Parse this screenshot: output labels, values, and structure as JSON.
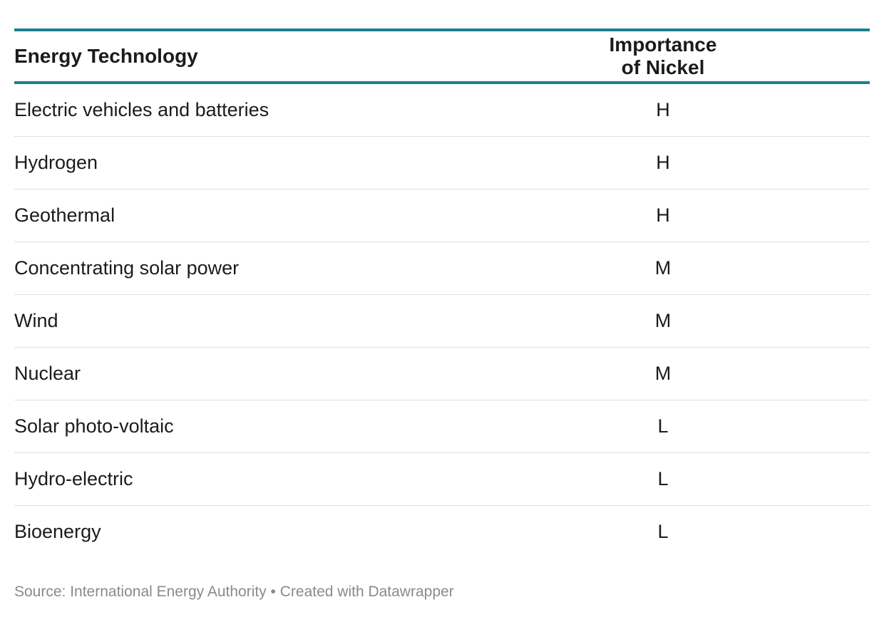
{
  "table": {
    "headers": [
      "Energy Technology",
      "Importance of Nickel"
    ],
    "rows": [
      [
        "Electric vehicles and batteries",
        "H"
      ],
      [
        "Hydrogen",
        "H"
      ],
      [
        "Geothermal",
        "H"
      ],
      [
        "Concentrating solar power",
        "M"
      ],
      [
        "Wind",
        "M"
      ],
      [
        "Nuclear",
        "M"
      ],
      [
        "Solar photo-voltaic",
        "L"
      ],
      [
        "Hydro-electric",
        "L"
      ],
      [
        "Bioenergy",
        "L"
      ]
    ]
  },
  "footer": {
    "text": "Source: International Energy Authority • Created with Datawrapper"
  },
  "colors": {
    "header_rule": "#1d7f92",
    "row_divider": "#e0e0e0",
    "footer_text": "#8a8a8a"
  },
  "chart_data": {
    "type": "table",
    "columns": [
      "Energy Technology",
      "Importance of Nickel"
    ],
    "rows": [
      {
        "Energy Technology": "Electric vehicles and batteries",
        "Importance of Nickel": "H"
      },
      {
        "Energy Technology": "Hydrogen",
        "Importance of Nickel": "H"
      },
      {
        "Energy Technology": "Geothermal",
        "Importance of Nickel": "H"
      },
      {
        "Energy Technology": "Concentrating solar power",
        "Importance of Nickel": "M"
      },
      {
        "Energy Technology": "Wind",
        "Importance of Nickel": "M"
      },
      {
        "Energy Technology": "Nuclear",
        "Importance of Nickel": "M"
      },
      {
        "Energy Technology": "Solar photo-voltaic",
        "Importance of Nickel": "L"
      },
      {
        "Energy Technology": "Hydro-electric",
        "Importance of Nickel": "L"
      },
      {
        "Energy Technology": "Bioenergy",
        "Importance of Nickel": "L"
      }
    ],
    "title": "",
    "source": "Source: International Energy Authority • Created with Datawrapper"
  }
}
